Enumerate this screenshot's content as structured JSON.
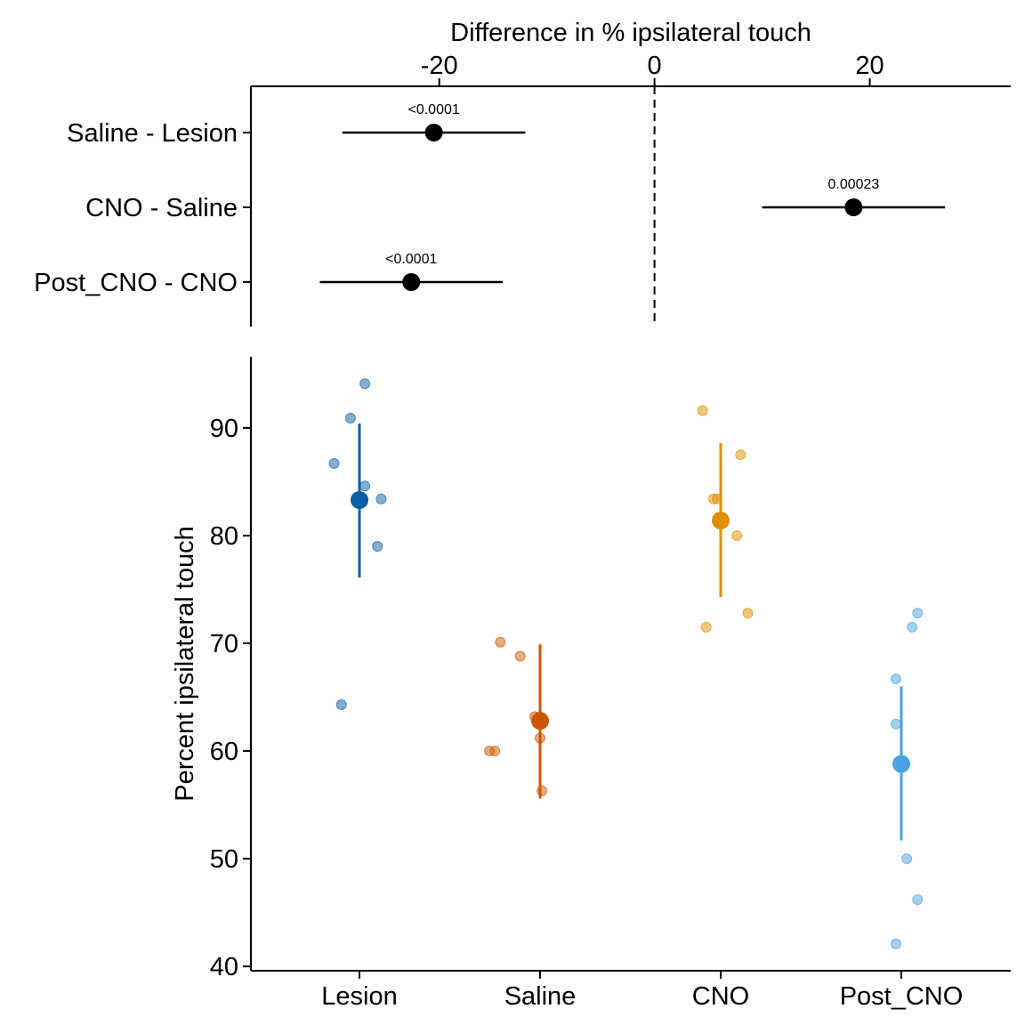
{
  "chart_data": [
    {
      "type": "forest",
      "title": "",
      "xlabel": "Difference in % ipsilateral touch",
      "ylabel": "",
      "xlim": [
        -37.5,
        33.1
      ],
      "xticks": [
        -20,
        0,
        20
      ],
      "reference_line": 0,
      "comparisons": [
        {
          "label": "Saline - Lesion",
          "estimate": -20.5,
          "ci_low": -29.0,
          "ci_high": -12.0,
          "p_label": "<0.0001"
        },
        {
          "label": "CNO - Saline",
          "estimate": 18.5,
          "ci_low": 10.0,
          "ci_high": 27.0,
          "p_label": "0.00023"
        },
        {
          "label": "Post_CNO - CNO",
          "estimate": -22.6,
          "ci_low": -31.1,
          "ci_high": -14.1,
          "p_label": "<0.0001"
        }
      ]
    },
    {
      "type": "scatter",
      "title": "",
      "xlabel": "",
      "ylabel": "Percent ipsilateral touch",
      "ylim": [
        39.6,
        96.6
      ],
      "yticks": [
        40,
        50,
        60,
        70,
        80,
        90
      ],
      "categories": [
        "Lesion",
        "Saline",
        "CNO",
        "Post_CNO"
      ],
      "series": [
        {
          "category": "Lesion",
          "color": "#0A5FA5",
          "mean": 83.3,
          "ci": [
            76.1,
            90.4
          ],
          "points": [
            {
              "offset": 0.03,
              "y": 94.1
            },
            {
              "offset": -0.05,
              "y": 90.9
            },
            {
              "offset": -0.14,
              "y": 86.7
            },
            {
              "offset": 0.03,
              "y": 84.6
            },
            {
              "offset": 0.12,
              "y": 83.4
            },
            {
              "offset": 0.1,
              "y": 79.0
            },
            {
              "offset": -0.1,
              "y": 64.3
            }
          ]
        },
        {
          "category": "Saline",
          "color": "#CC5500",
          "mean": 62.8,
          "ci": [
            55.6,
            69.9
          ],
          "points": [
            {
              "offset": -0.22,
              "y": 70.1
            },
            {
              "offset": -0.11,
              "y": 68.8
            },
            {
              "offset": -0.03,
              "y": 63.2
            },
            {
              "offset": 0.0,
              "y": 61.2
            },
            {
              "offset": -0.28,
              "y": 60.0
            },
            {
              "offset": -0.25,
              "y": 60.0
            },
            {
              "offset": 0.01,
              "y": 56.3
            }
          ]
        },
        {
          "category": "CNO",
          "color": "#E08F00",
          "mean": 81.4,
          "ci": [
            74.3,
            88.6
          ],
          "points": [
            {
              "offset": -0.1,
              "y": 91.6
            },
            {
              "offset": 0.11,
              "y": 87.5
            },
            {
              "offset": -0.04,
              "y": 83.4
            },
            {
              "offset": -0.02,
              "y": 83.4
            },
            {
              "offset": 0.09,
              "y": 80.0
            },
            {
              "offset": 0.15,
              "y": 72.8
            },
            {
              "offset": -0.08,
              "y": 71.5
            }
          ]
        },
        {
          "category": "Post_CNO",
          "color": "#4AA3E0",
          "mean": 58.8,
          "ci": [
            51.7,
            66.0
          ],
          "points": [
            {
              "offset": 0.09,
              "y": 72.8
            },
            {
              "offset": 0.06,
              "y": 71.5
            },
            {
              "offset": -0.03,
              "y": 66.7
            },
            {
              "offset": -0.03,
              "y": 62.5
            },
            {
              "offset": 0.03,
              "y": 50.0
            },
            {
              "offset": 0.09,
              "y": 46.2
            },
            {
              "offset": -0.03,
              "y": 42.1
            }
          ]
        }
      ]
    }
  ]
}
